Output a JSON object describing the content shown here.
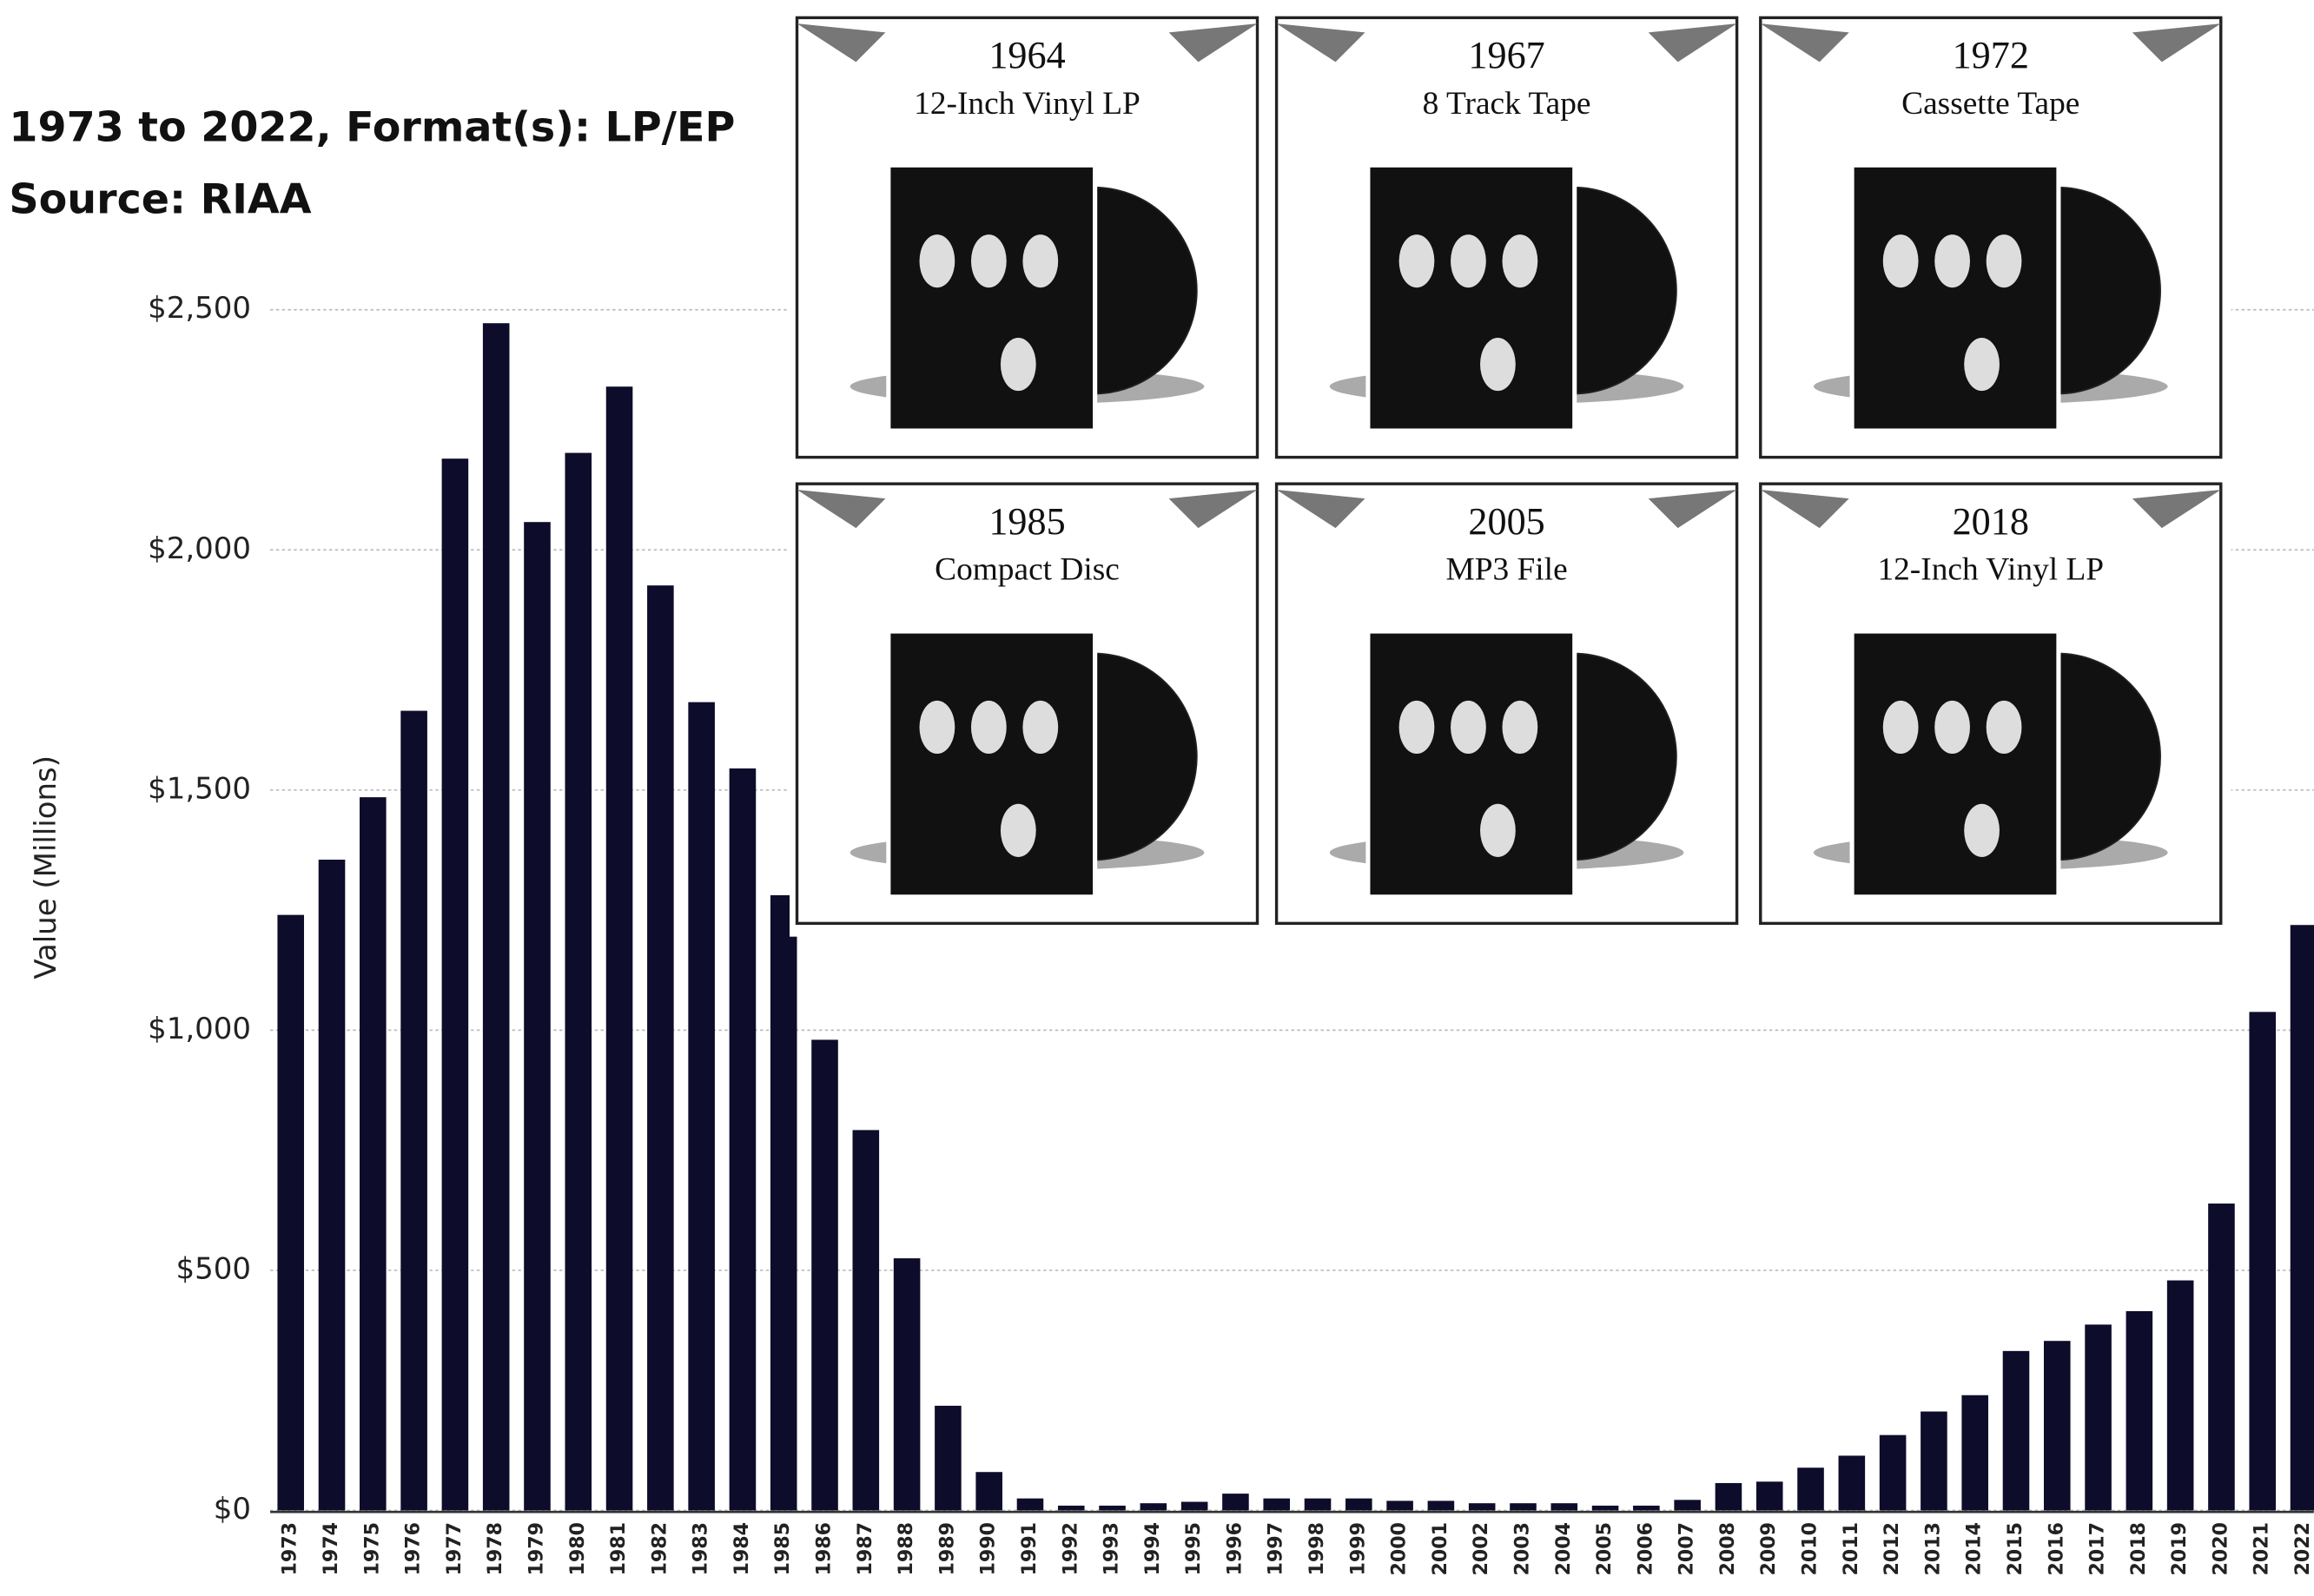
{
  "chart_data": {
    "type": "bar",
    "title": "1973 to 2022, Format(s): LP/EP",
    "subtitle": "Source: RIAA",
    "y_label": "Value (Millions)",
    "color": "#0d0c2a",
    "grid": true,
    "categories": [
      "1973",
      "1974",
      "1975",
      "1976",
      "1977",
      "1978",
      "1979",
      "1980",
      "1981",
      "1982",
      "1983",
      "1984",
      "1985",
      "1986",
      "1987",
      "1988",
      "1989",
      "1990",
      "1991",
      "1992",
      "1993",
      "1994",
      "1995",
      "1996",
      "1997",
      "1998",
      "1999",
      "2000",
      "2001",
      "2002",
      "2003",
      "2004",
      "2005",
      "2006",
      "2007",
      "2008",
      "2009",
      "2010",
      "2011",
      "2012",
      "2013",
      "2014",
      "2015",
      "2016",
      "2017",
      "2018",
      "2019",
      "2020",
      "2021",
      "2022"
    ],
    "values": [
      1240,
      1355,
      1485,
      1665,
      2190,
      2472,
      2058,
      2202,
      2340,
      1926,
      1683,
      1545,
      1281,
      980,
      792,
      525,
      218,
      80,
      25,
      10,
      10,
      15,
      18,
      35,
      25,
      25,
      25,
      20,
      20,
      15,
      15,
      15,
      10,
      10,
      22,
      57,
      60,
      89,
      114,
      157,
      206,
      240,
      332,
      353,
      387,
      415,
      479,
      639,
      1038,
      1219
    ],
    "ylim": [
      0,
      2500
    ],
    "yticks": [
      {
        "value": 0,
        "label": "$0"
      },
      {
        "value": 500,
        "label": "$500"
      },
      {
        "value": 1000,
        "label": "$1,000"
      },
      {
        "value": 1500,
        "label": "$1,500"
      },
      {
        "value": 2000,
        "label": "$2,000"
      },
      {
        "value": 2500,
        "label": "$2,500"
      }
    ]
  },
  "panels": [
    {
      "year": "1964",
      "format": "12-Inch Vinyl LP"
    },
    {
      "year": "1967",
      "format": "8 Track Tape"
    },
    {
      "year": "1972",
      "format": "Cassette Tape"
    },
    {
      "year": "1985",
      "format": "Compact Disc"
    },
    {
      "year": "2005",
      "format": "MP3 File"
    },
    {
      "year": "2018",
      "format": "12-Inch Vinyl LP"
    }
  ]
}
